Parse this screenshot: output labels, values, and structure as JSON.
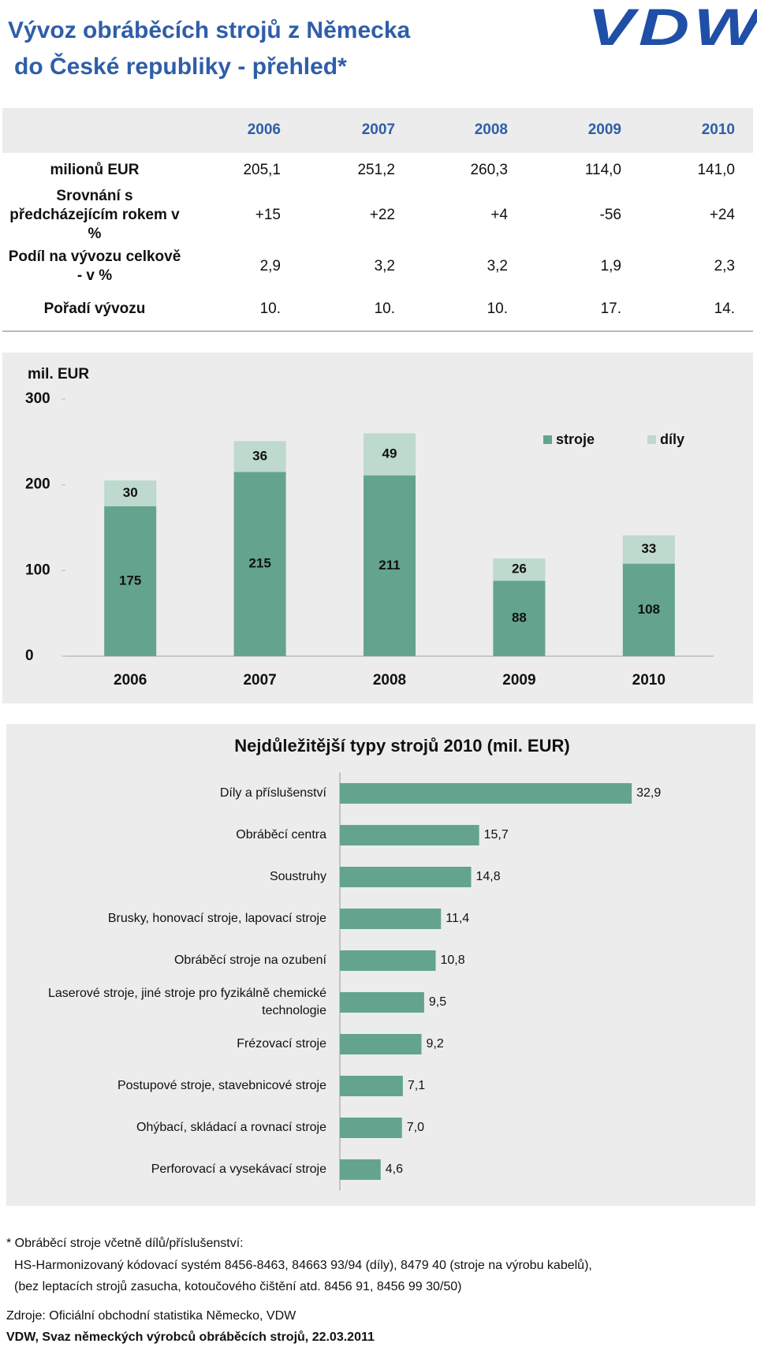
{
  "header": {
    "title_lines": [
      "Vývoz obráběcích strojů z Německa",
      "do České republiky - přehled*"
    ],
    "logo": "VDW"
  },
  "table": {
    "columns": [
      "2006",
      "2007",
      "2008",
      "2009",
      "2010"
    ],
    "rows": [
      {
        "label": "milionů EUR",
        "values": [
          "205,1",
          "251,2",
          "260,3",
          "114,0",
          "141,0"
        ]
      },
      {
        "label": "Srovnání s předcházejícím rokem v %",
        "values": [
          "+15",
          "+22",
          "+4",
          "-56",
          "+24"
        ]
      },
      {
        "label": "Podíl na vývozu celkově - v %",
        "values": [
          "2,9",
          "3,2",
          "3,2",
          "1,9",
          "2,3"
        ]
      },
      {
        "label": "Pořadí vývozu",
        "values": [
          "10.",
          "10.",
          "10.",
          "17.",
          "14."
        ]
      }
    ]
  },
  "chart_data": [
    {
      "type": "stacked_bar",
      "y_label": "mil. EUR",
      "categories": [
        "2006",
        "2007",
        "2008",
        "2009",
        "2010"
      ],
      "series": [
        {
          "name": "stroje",
          "color": "#64a48e",
          "values": [
            175,
            215,
            211,
            88,
            108
          ]
        },
        {
          "name": "díly",
          "color": "#bed9cd",
          "values": [
            30,
            36,
            49,
            26,
            33
          ]
        }
      ],
      "ylim": [
        0,
        300
      ],
      "yticks": [
        0,
        100,
        200,
        300
      ],
      "grid": false,
      "legend": "top-right"
    },
    {
      "type": "horizontal_bar",
      "title": "Nejdůležitější typy strojů 2010 (mil. EUR)",
      "categories": [
        "Díly a příslušenství",
        "Obráběcí centra",
        "Soustruhy",
        "Brusky, honovací stroje, lapovací stroje",
        "Obráběcí stroje na ozubení",
        "Laserové stroje, jiné stroje pro fyzikálně chemické technologie",
        "Frézovací stroje",
        "Postupové stroje, stavebnicové stroje",
        "Ohýbací, skládací a rovnací stroje",
        "Perforovací a vysekávací stroje"
      ],
      "values": [
        32.9,
        15.7,
        14.8,
        11.4,
        10.8,
        9.5,
        9.2,
        7.1,
        7.0,
        4.6
      ],
      "value_labels": [
        "32,9",
        "15,7",
        "14,8",
        "11,4",
        "10,8",
        "9,5",
        "9,2",
        "7,1",
        "7,0",
        "4,6"
      ],
      "color": "#64a48e",
      "xlim": [
        0,
        42
      ]
    }
  ],
  "footer": {
    "note_lines": [
      "* Obráběcí stroje včetně dílů/příslušenství:",
      "HS-Harmonizovaný kódovací systém 8456-8463, 84663 93/94 (díly), 8479 40 (stroje na výrobu kabelů),",
      "(bez leptacích strojů zasucha,  kotoučového čištění atd. 8456 91, 8456 99 30/50)"
    ],
    "source": "Zdroje: Oficiální obchodní statistika Německo, VDW",
    "credit": "VDW, Svaz německých výrobců obráběcích strojů, 22.03.2011"
  }
}
